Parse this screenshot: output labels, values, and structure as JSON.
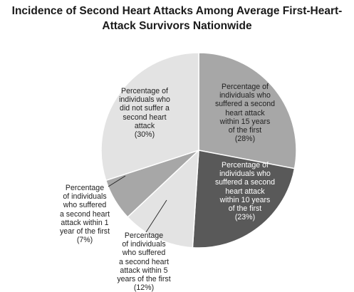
{
  "chart_data": {
    "type": "pie",
    "title_lines": [
      "Incidence of Second Heart Attacks Among Average First-Heart-",
      "Attack Survivors Nationwide"
    ],
    "slices": [
      {
        "value": 28,
        "color": "#a7a7a7",
        "label_lines": [
          "Percentage of",
          "individuals who",
          "suffered a second",
          "heart attack",
          "within 15 years",
          "of the first",
          "(28%)"
        ]
      },
      {
        "value": 23,
        "color": "#595959",
        "label_lines": [
          "Percentage of",
          "individuals who",
          "suffered a second",
          "heart attack",
          "within 10 years",
          "of the first",
          "(23%)"
        ]
      },
      {
        "value": 12,
        "color": "#e3e3e3",
        "label_lines": [
          "Percentage",
          "of individuals",
          "who suffered",
          "a second heart",
          "attack within 5",
          "years of the first",
          "(12%)"
        ]
      },
      {
        "value": 7,
        "color": "#a7a7a7",
        "label_lines": [
          "Percentage",
          "of individuals",
          "who suffered",
          "a second heart",
          "attack within 1",
          "year of the first",
          "(7%)"
        ]
      },
      {
        "value": 30,
        "color": "#e3e3e3",
        "label_lines": [
          "Percentage of",
          "individuals who",
          "did not suffer a",
          "second heart",
          "attack",
          "(30%)"
        ]
      }
    ],
    "legend": "none",
    "labels": "inside slices; small slices labeled outside with leader lines"
  }
}
